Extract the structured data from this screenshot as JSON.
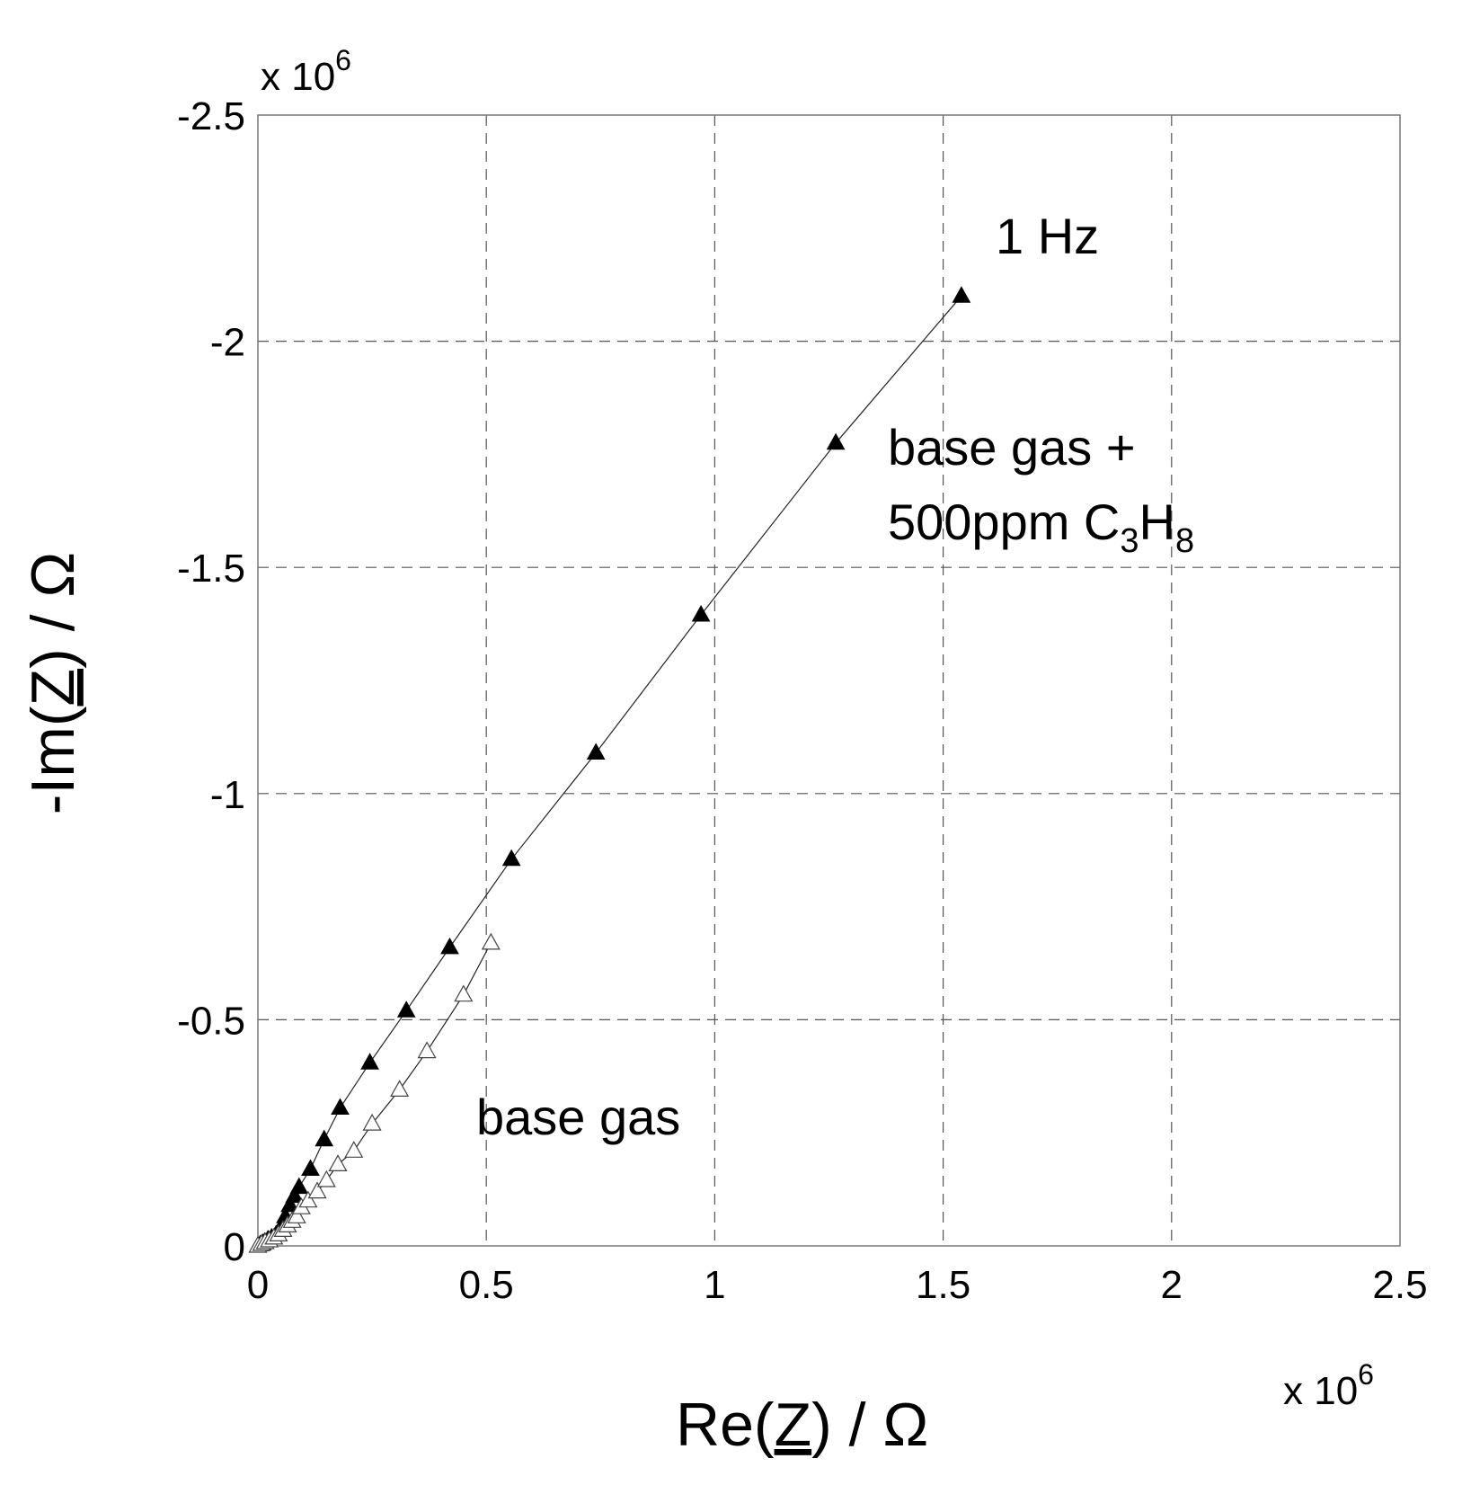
{
  "chart_data": {
    "type": "scatter",
    "title": "",
    "xlabel": {
      "main": "Re(",
      "underlined": "Z",
      "tail": ") / Ω"
    },
    "ylabel": {
      "main": "-Im(",
      "underlined": "Z",
      "tail": ") / Ω"
    },
    "xlim": [
      0,
      2500000
    ],
    "ylim": [
      0,
      -2500000
    ],
    "x_multiplier": {
      "base": "x 10",
      "exp": "6"
    },
    "y_multiplier": {
      "base": "x 10",
      "exp": "6"
    },
    "x_ticks": [
      "0",
      "0.5",
      "1",
      "1.5",
      "2",
      "2.5"
    ],
    "y_ticks": [
      "0",
      "-0.5",
      "-1",
      "-1.5",
      "-2",
      "-2.5"
    ],
    "x_tick_values": [
      0,
      500000,
      1000000,
      1500000,
      2000000,
      2500000
    ],
    "y_tick_values": [
      0,
      -500000,
      -1000000,
      -1500000,
      -2000000,
      -2500000
    ],
    "grid": true,
    "annotations": {
      "freq": "1 Hz",
      "upper_line1": "base gas +",
      "upper_line2_main": "500ppm C",
      "upper_sub1": "3",
      "upper_mid": "H",
      "upper_sub2": "8",
      "lower": "base gas"
    },
    "series": [
      {
        "key": "c3h8",
        "marker": "filled-triangle",
        "color": "#000000",
        "points": [
          [
            0,
            0
          ],
          [
            5000,
            -3000
          ],
          [
            10000,
            -6000
          ],
          [
            15000,
            -9000
          ],
          [
            22000,
            -14000
          ],
          [
            30000,
            -18000
          ],
          [
            40000,
            -25000
          ],
          [
            50000,
            -40000
          ],
          [
            60000,
            -65000
          ],
          [
            70000,
            -90000
          ],
          [
            80000,
            -110000
          ],
          [
            90000,
            -130000
          ],
          [
            115000,
            -170000
          ],
          [
            145000,
            -235000
          ],
          [
            180000,
            -305000
          ],
          [
            245000,
            -405000
          ],
          [
            325000,
            -520000
          ],
          [
            420000,
            -660000
          ],
          [
            555000,
            -855000
          ],
          [
            740000,
            -1090000
          ],
          [
            970000,
            -1395000
          ],
          [
            1265000,
            -1775000
          ],
          [
            1540000,
            -2100000
          ]
        ]
      },
      {
        "key": "base",
        "marker": "open-triangle",
        "color": "#000000",
        "points": [
          [
            0,
            0
          ],
          [
            8000,
            -4000
          ],
          [
            16000,
            -8000
          ],
          [
            25000,
            -12000
          ],
          [
            35000,
            -18000
          ],
          [
            45000,
            -25000
          ],
          [
            55000,
            -35000
          ],
          [
            65000,
            -45000
          ],
          [
            75000,
            -55000
          ],
          [
            85000,
            -65000
          ],
          [
            95000,
            -85000
          ],
          [
            110000,
            -100000
          ],
          [
            130000,
            -120000
          ],
          [
            150000,
            -145000
          ],
          [
            175000,
            -180000
          ],
          [
            210000,
            -210000
          ],
          [
            250000,
            -270000
          ],
          [
            310000,
            -345000
          ],
          [
            370000,
            -430000
          ],
          [
            450000,
            -555000
          ],
          [
            510000,
            -670000
          ]
        ]
      }
    ]
  }
}
